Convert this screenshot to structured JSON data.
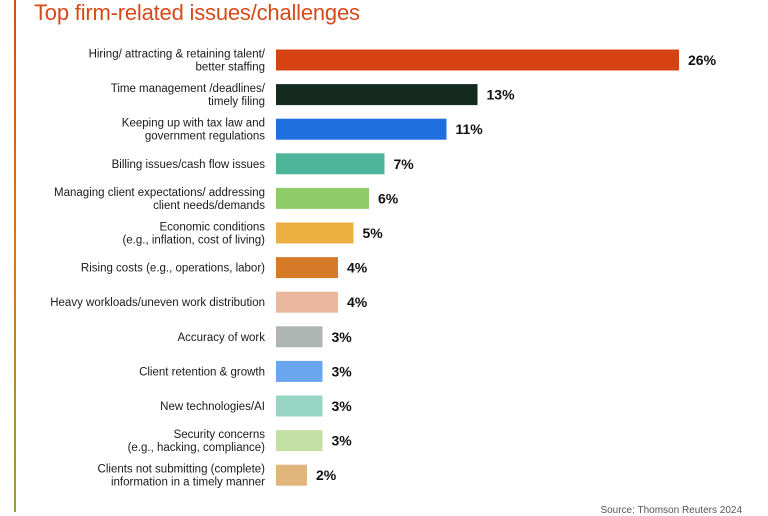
{
  "title": "Top firm-related issues/challenges",
  "source": "Source: Thomson Reuters 2024",
  "chart_data": {
    "type": "bar",
    "orientation": "horizontal",
    "title": "Top firm-related issues/challenges",
    "xlabel": "",
    "ylabel": "",
    "xlim": [
      0,
      26
    ],
    "grid": false,
    "legend": "none",
    "categories": [
      [
        "Hiring/ attracting & retaining talent/",
        "better staffing"
      ],
      [
        "Time management /deadlines/",
        "timely filing"
      ],
      [
        "Keeping up with tax law and",
        "government regulations"
      ],
      [
        "Billing issues/cash flow issues"
      ],
      [
        "Managing client expectations/ addressing",
        "client needs/demands"
      ],
      [
        "Economic conditions",
        "(e.g., inflation, cost of living)"
      ],
      [
        "Rising costs (e.g., operations, labor)"
      ],
      [
        "Heavy workloads/uneven work distribution"
      ],
      [
        "Accuracy of work"
      ],
      [
        "Client retention & growth"
      ],
      [
        "New technologies/AI"
      ],
      [
        "Security concerns",
        "(e.g., hacking, compliance)"
      ],
      [
        "Clients not submitting (complete)",
        "information in a timely manner"
      ]
    ],
    "values": [
      26,
      13,
      11,
      7,
      6,
      5,
      4,
      4,
      3,
      3,
      3,
      3,
      2
    ],
    "value_labels": [
      "26%",
      "13%",
      "11%",
      "7%",
      "6%",
      "5%",
      "4%",
      "4%",
      "3%",
      "3%",
      "3%",
      "3%",
      "2%"
    ],
    "colors": [
      "#d64211",
      "#14291f",
      "#1f6fe0",
      "#4fb59a",
      "#8dcc66",
      "#ebb041",
      "#d67a27",
      "#ebb89f",
      "#adb6b2",
      "#6aa6ee",
      "#96d4c4",
      "#c2e0a4",
      "#e2b57c"
    ]
  }
}
